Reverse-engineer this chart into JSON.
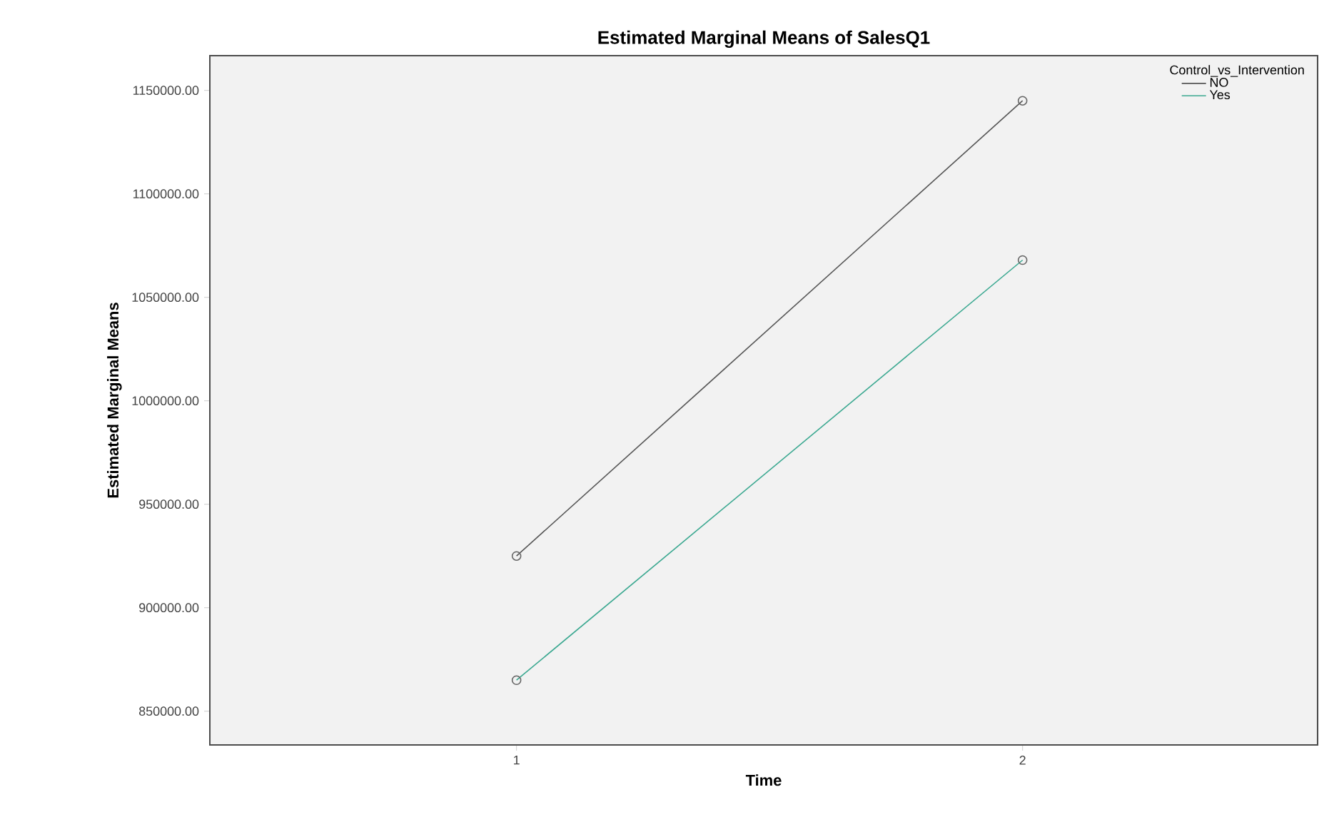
{
  "chart_data": {
    "type": "line",
    "title": "Estimated Marginal Means of SalesQ1",
    "xlabel": "Time",
    "ylabel": "Estimated Marginal Means",
    "legend_title": "Control_vs_Intervention",
    "x": [
      1,
      2
    ],
    "xlim": [
      0.394,
      2.583
    ],
    "xticks": [
      1,
      2
    ],
    "ylim": [
      833700,
      1166800
    ],
    "yticks": [
      {
        "value": 850000,
        "label": "850000.00"
      },
      {
        "value": 900000,
        "label": "900000.00"
      },
      {
        "value": 950000,
        "label": "950000.00"
      },
      {
        "value": 1000000,
        "label": "1000000.00"
      },
      {
        "value": 1050000,
        "label": "1050000.00"
      },
      {
        "value": 1100000,
        "label": "1100000.00"
      },
      {
        "value": 1150000,
        "label": "1150000.00"
      }
    ],
    "series": [
      {
        "name": "NO",
        "color": "#555555",
        "values": [
          925000,
          1145000
        ]
      },
      {
        "name": "Yes",
        "color": "#3aa890",
        "values": [
          865000,
          1068000
        ]
      }
    ],
    "marker": "circle",
    "line_style": "solid",
    "legend": "top right",
    "grid": false
  }
}
